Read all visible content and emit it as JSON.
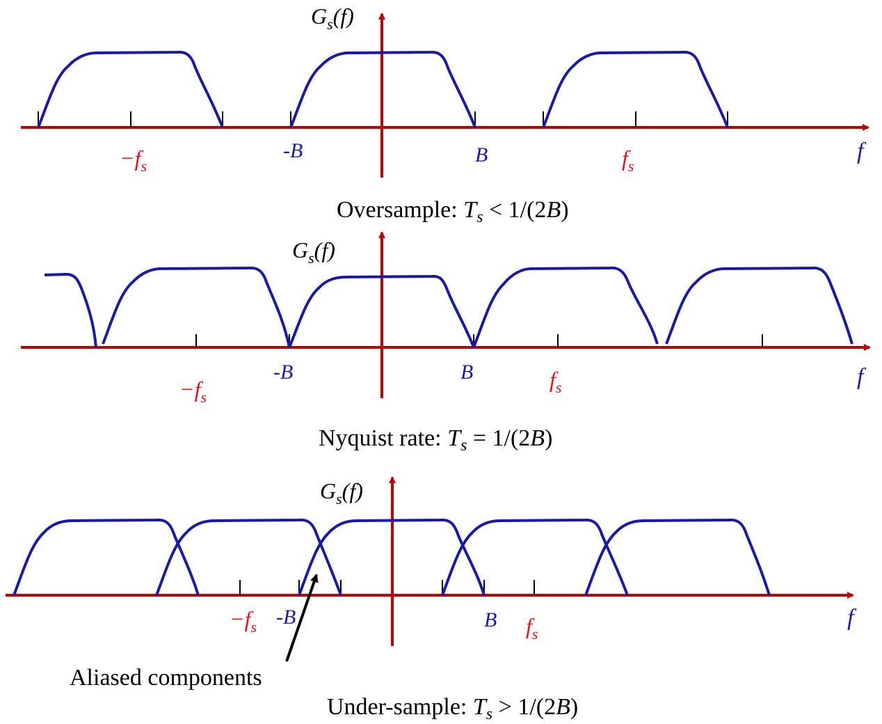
{
  "colors": {
    "axis": "#c00000",
    "curve": "#1a1aa8",
    "red_label": "#e8101c",
    "blue_label": "#1a1aa8",
    "text": "#000000"
  },
  "panels": [
    {
      "id": "oversample",
      "y_axis_label": "G",
      "y_axis_sub": "s",
      "y_axis_arg": "(f)",
      "x_axis_label": "f",
      "caption": {
        "pre": "Oversample: ",
        "T": "T",
        "sub": "s",
        "post": " < 1/(2",
        "B": "B",
        "close": ")"
      },
      "labels": {
        "neg_fs": "−f",
        "neg_B": "-B",
        "B": "B",
        "fs": "f",
        "s": "s"
      }
    },
    {
      "id": "nyquist",
      "y_axis_label": "G",
      "y_axis_sub": "s",
      "y_axis_arg": "(f)",
      "x_axis_label": "f",
      "caption": {
        "pre": "Nyquist rate: ",
        "T": "T",
        "sub": "s",
        "post": " = 1/(2",
        "B": "B",
        "close": ")"
      },
      "labels": {
        "neg_fs": "−f",
        "neg_B": "-B",
        "B": "B",
        "fs": "f",
        "s": "s"
      }
    },
    {
      "id": "undersample",
      "y_axis_label": "G",
      "y_axis_sub": "s",
      "y_axis_arg": "(f)",
      "x_axis_label": "f",
      "caption": {
        "pre": "Under-sample: ",
        "T": "T",
        "sub": "s",
        "post": " > 1/(2",
        "B": "B",
        "close": ")"
      },
      "labels": {
        "neg_fs": "−f",
        "neg_B": "-B",
        "B": "B",
        "fs": "f",
        "s": "s"
      },
      "annotation": "Aliased components"
    }
  ]
}
